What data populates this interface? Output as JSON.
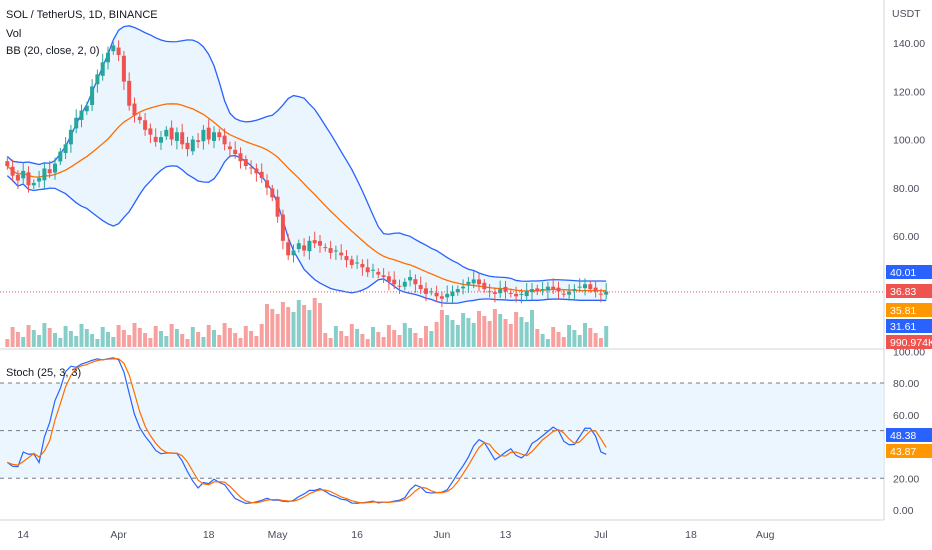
{
  "legend": {
    "symbol": "SOL / TetherUS, 1D, BINANCE",
    "vol": "Vol",
    "bb": "BB (20, close, 2, 0)",
    "stoch": "Stoch (25, 3, 3)"
  },
  "price_axis": {
    "currency": "USDT",
    "ticks": [
      "140.00",
      "120.00",
      "100.00",
      "80.00",
      "60.00"
    ]
  },
  "stoch_axis": {
    "ticks": [
      "100.00",
      "80.00",
      "60.00",
      "20.00",
      "0.00"
    ]
  },
  "price_badges": [
    {
      "label": "40.01",
      "color": "#2962ff",
      "value": 40.01
    },
    {
      "label": "36.83",
      "color": "#ef5350",
      "value": 36.83
    },
    {
      "label": "35.81",
      "color": "#ff9800",
      "value": 35.81
    },
    {
      "label": "31.61",
      "color": "#2962ff",
      "value": 31.61
    }
  ],
  "volume_badge": {
    "label": "990.974K",
    "color": "#ef5350"
  },
  "stoch_badges": [
    {
      "label": "48.38",
      "color": "#2962ff",
      "value": 48.38
    },
    {
      "label": "43.87",
      "color": "#ff9800",
      "value": 43.87
    }
  ],
  "time_axis": {
    "labels": [
      {
        "text": "14",
        "day": 3
      },
      {
        "text": "Apr",
        "day": 21
      },
      {
        "text": "18",
        "day": 38
      },
      {
        "text": "May",
        "day": 51
      },
      {
        "text": "16",
        "day": 66
      },
      {
        "text": "Jun",
        "day": 82
      },
      {
        "text": "13",
        "day": 94
      },
      {
        "text": "Jul",
        "day": 112
      },
      {
        "text": "18",
        "day": 129
      },
      {
        "text": "Aug",
        "day": 143
      }
    ]
  },
  "colors": {
    "up": "#26a69a",
    "down": "#ef5350",
    "bb_band": "#2962ff",
    "bb_basis": "#ff6d00",
    "bb_fill": "#e3f2fd",
    "stoch_k": "#2962ff",
    "stoch_d": "#ff6d00"
  },
  "chart_data": {
    "type": "candlestick",
    "price_range": [
      0,
      150
    ],
    "stoch_range": [
      0,
      100
    ],
    "stoch_levels": [
      80,
      50,
      20
    ],
    "start_date": "2022-03-11",
    "closes": [
      89,
      85,
      83,
      87,
      81,
      82,
      84,
      88,
      86,
      90,
      95,
      98,
      104,
      109,
      112,
      114,
      122,
      127,
      132,
      136,
      139,
      135,
      124,
      114,
      110,
      108,
      104,
      102,
      99,
      101,
      104,
      100,
      103,
      98,
      96,
      100,
      99,
      104,
      100,
      103,
      101,
      98,
      96,
      94,
      91,
      89,
      88,
      86,
      84,
      80,
      76,
      68,
      58,
      52,
      54,
      57,
      54,
      58,
      57,
      56,
      55,
      53,
      54,
      52,
      50,
      48,
      49,
      47,
      45,
      46,
      44,
      43,
      41,
      40,
      39,
      41,
      43,
      40,
      38,
      36,
      37,
      35,
      34,
      36,
      37,
      38,
      39,
      41,
      42,
      40,
      38,
      37,
      36,
      38,
      37,
      36,
      35,
      36,
      37,
      38,
      37,
      38,
      39,
      38,
      37,
      36,
      37,
      38,
      39,
      40,
      38,
      37,
      36,
      37
    ]
  }
}
